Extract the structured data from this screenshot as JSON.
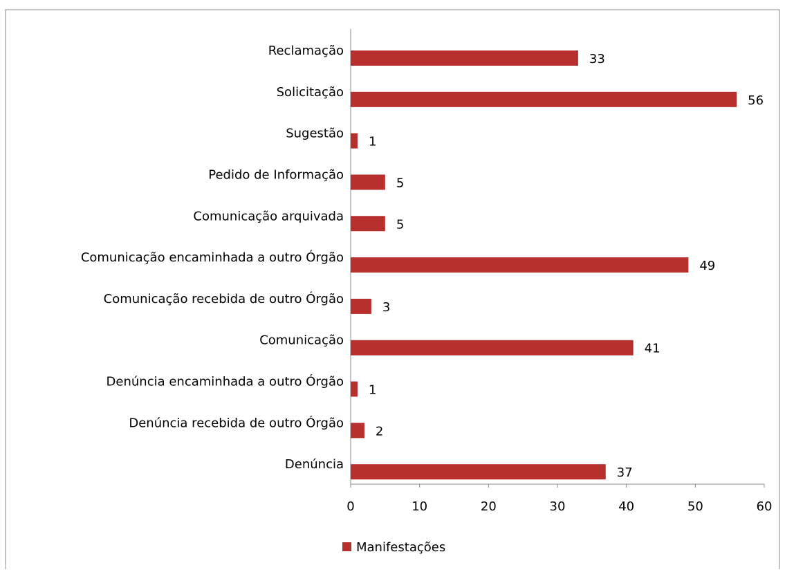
{
  "chart_data": {
    "type": "bar",
    "orientation": "horizontal",
    "categories": [
      "Reclamação",
      "Solicitação",
      "Sugestão",
      "Pedido de Informação",
      "Comunicação arquivada",
      "Comunicação encaminhada a outro Órgão",
      "Comunicação recebida de outro Órgão",
      "Comunicação",
      "Denúncia encaminhada a outro Órgão",
      "Denúncia recebida de outro Órgão",
      "Denúncia"
    ],
    "series": [
      {
        "name": "Manifestações",
        "color": "#b8302e",
        "values": [
          33,
          56,
          1,
          5,
          5,
          49,
          3,
          41,
          1,
          2,
          37
        ]
      }
    ],
    "xlim": [
      0,
      60
    ],
    "xticks": [
      0,
      10,
      20,
      30,
      40,
      50,
      60
    ],
    "legend": "bottom",
    "grid": false
  }
}
